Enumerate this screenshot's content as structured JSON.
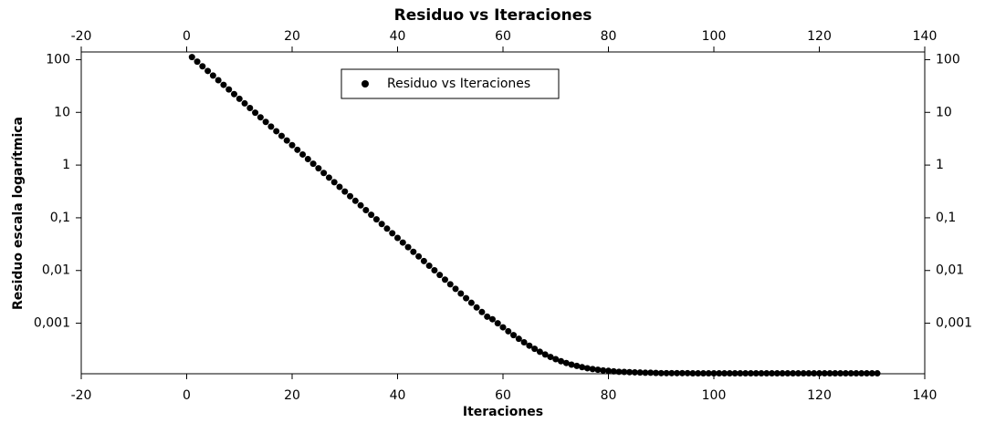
{
  "chart_data": {
    "type": "scatter",
    "title": "Residuo vs Iteraciones",
    "x_label": "Iteraciones",
    "y_label": "Residuo escala logarítmica",
    "log_y": true,
    "legend_position": "top",
    "xlim": [
      -20,
      140
    ],
    "ylim": [
      0.00011,
      140
    ],
    "xticks": [
      -20,
      0,
      20,
      40,
      60,
      80,
      100,
      120,
      140
    ],
    "yticks": [
      100,
      10,
      1,
      {
        "value": 0.1,
        "label": "0,1"
      },
      {
        "value": 0.01,
        "label": "0,01"
      },
      {
        "value": 0.001,
        "label": "0,001"
      }
    ],
    "x": [
      1,
      2,
      3,
      4,
      5,
      6,
      7,
      8,
      9,
      10,
      11,
      12,
      13,
      14,
      15,
      16,
      17,
      18,
      19,
      20,
      21,
      22,
      23,
      24,
      25,
      26,
      27,
      28,
      29,
      30,
      31,
      32,
      33,
      34,
      35,
      36,
      37,
      38,
      39,
      40,
      41,
      42,
      43,
      44,
      45,
      46,
      47,
      48,
      49,
      50,
      51,
      52,
      53,
      54,
      55,
      56,
      57,
      58,
      59,
      60,
      61,
      62,
      63,
      64,
      65,
      66,
      67,
      68,
      69,
      70,
      71,
      72,
      73,
      74,
      75,
      76,
      77,
      78,
      79,
      80,
      81,
      82,
      83,
      84,
      85,
      86,
      87,
      88,
      89,
      90,
      91,
      92,
      93,
      94,
      95,
      96,
      97,
      98,
      99,
      100,
      101,
      102,
      103,
      104,
      105,
      106,
      107,
      108,
      109,
      110,
      111,
      112,
      113,
      114,
      115,
      116,
      117,
      118,
      119,
      120,
      121,
      122,
      123,
      124,
      125,
      126,
      127,
      128,
      129,
      130,
      131
    ],
    "series": [
      {
        "name": "Residuo vs Iteraciones",
        "color": "#000000",
        "values": [
          112,
          91.6,
          74.8,
          61.1,
          49.9,
          40.7,
          33.3,
          27.2,
          22.2,
          18.1,
          14.8,
          12.1,
          9.87,
          8.06,
          6.58,
          5.37,
          4.39,
          3.58,
          2.93,
          2.39,
          1.95,
          1.59,
          1.3,
          1.06,
          0.868,
          0.709,
          0.579,
          0.473,
          0.386,
          0.315,
          0.257,
          0.21,
          0.172,
          0.14,
          0.114,
          0.0934,
          0.0763,
          0.0623,
          0.0509,
          0.0415,
          0.0339,
          0.0277,
          0.0226,
          0.0185,
          0.0151,
          0.0123,
          0.0101,
          0.00822,
          0.00671,
          0.00548,
          0.00448,
          0.00366,
          0.00298,
          0.00244,
          0.00199,
          0.00163,
          0.00133,
          0.00119,
          0.000998,
          0.000836,
          0.000703,
          0.000595,
          0.000506,
          0.000434,
          0.000375,
          0.000327,
          0.000287,
          0.000255,
          0.000229,
          0.000208,
          0.00019,
          0.000176,
          0.000164,
          0.000155,
          0.000147,
          0.00014,
          0.000135,
          0.000131,
          0.000127,
          0.000125,
          0.000122,
          0.00012,
          0.000119,
          0.000118,
          0.000117,
          0.000116,
          0.000115,
          0.000115,
          0.000114,
          0.000113,
          0.000113,
          0.000113,
          0.000113,
          0.000113,
          0.000113,
          0.000112,
          0.000112,
          0.000112,
          0.000112,
          0.000112,
          0.000112,
          0.000112,
          0.000112,
          0.000112,
          0.000112,
          0.000112,
          0.000112,
          0.000112,
          0.000112,
          0.000112,
          0.000112,
          0.000112,
          0.000112,
          0.000112,
          0.000112,
          0.000112,
          0.000112,
          0.000112,
          0.000112,
          0.000112,
          0.000112,
          0.000112,
          0.000112,
          0.000112,
          0.000112,
          0.000112,
          0.000112,
          0.000112,
          0.000112,
          0.000112,
          0.000112
        ]
      }
    ]
  }
}
